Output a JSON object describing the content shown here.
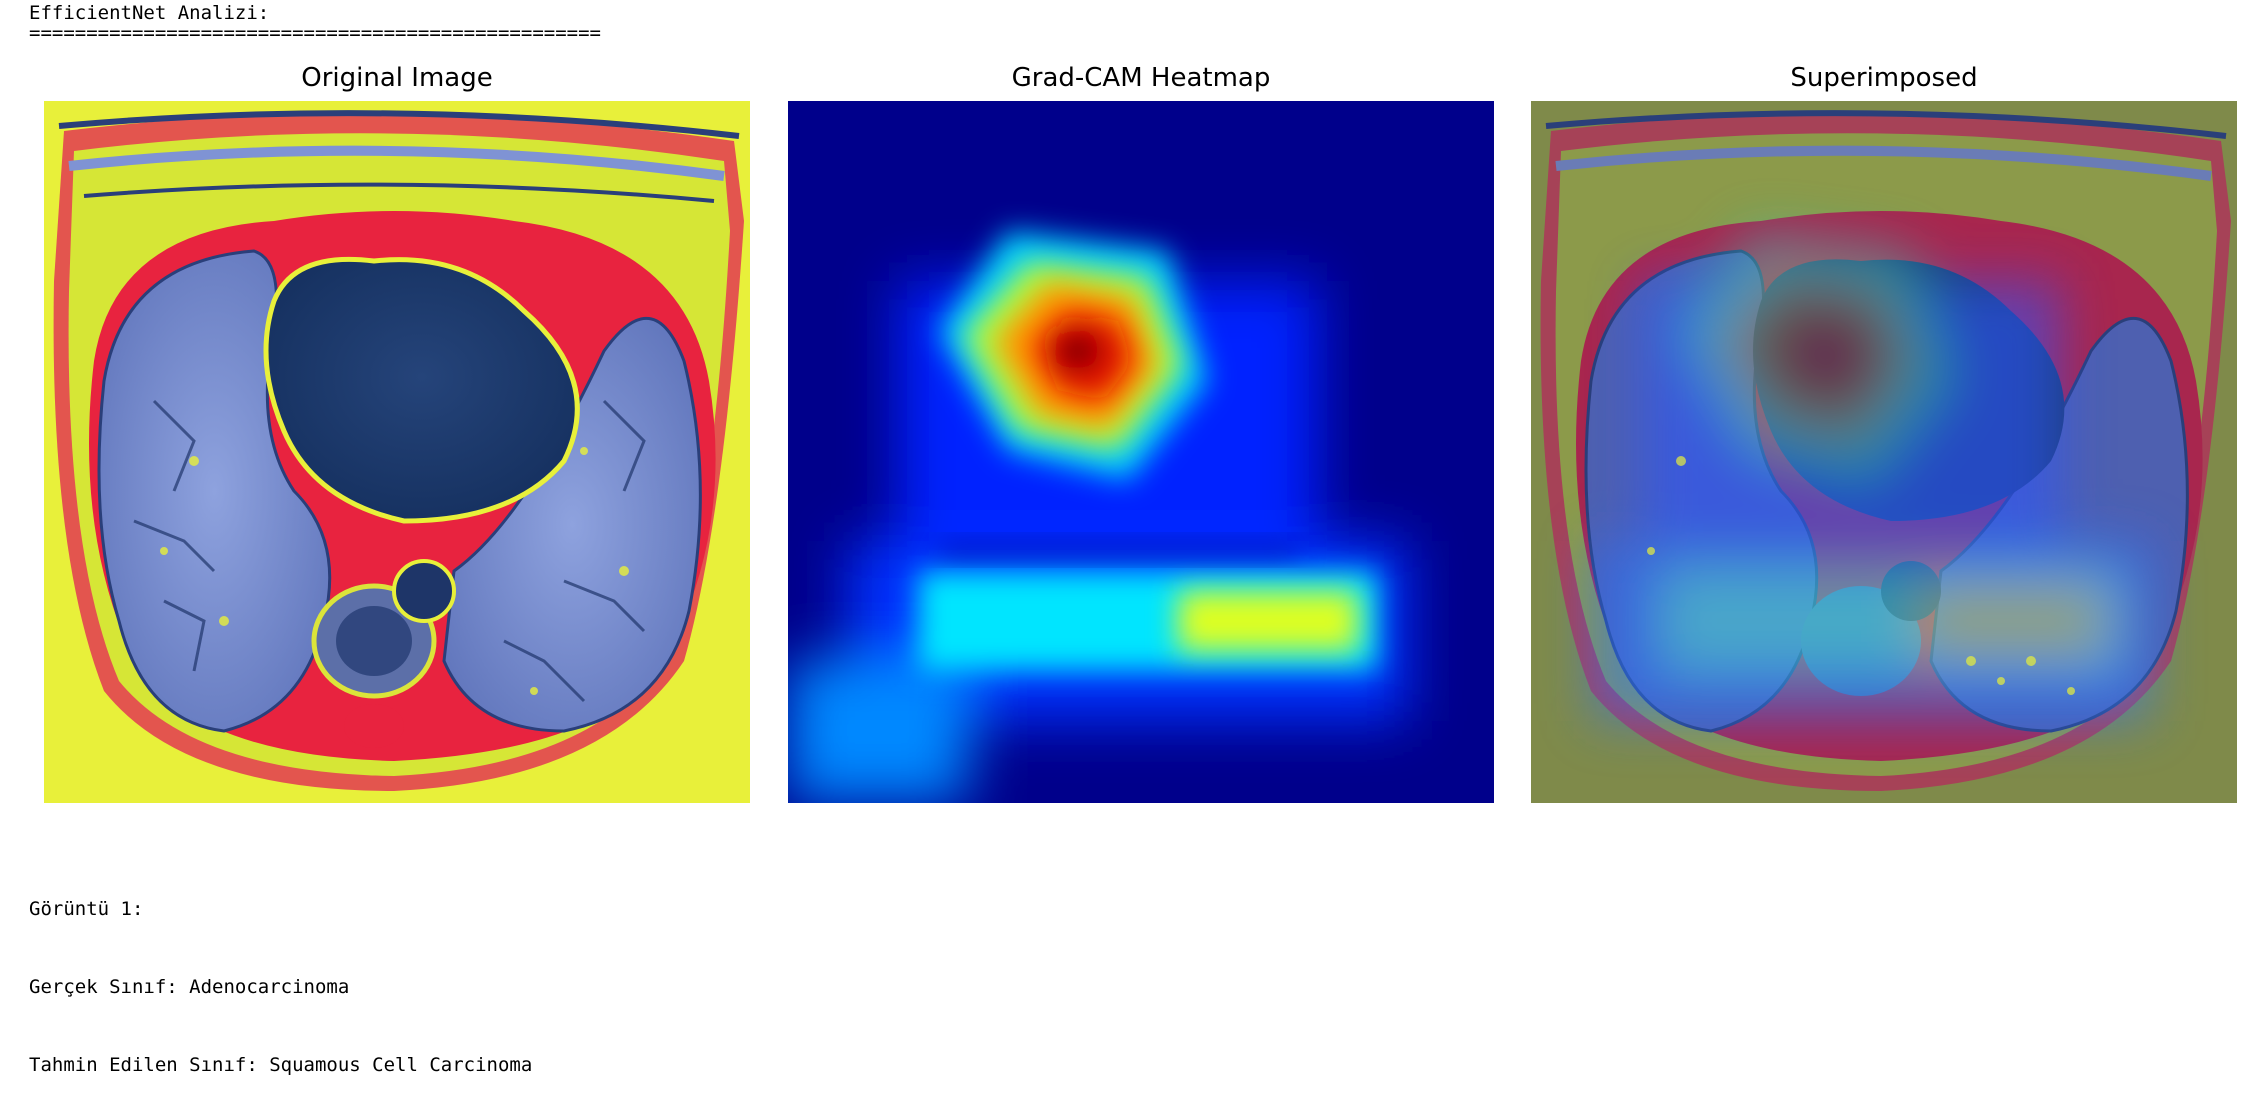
{
  "header": {
    "title": "EfficientNet Analizi:",
    "rule": "=================================================="
  },
  "panels": [
    {
      "title": "Original Image",
      "image_icon": "ct-scan-image"
    },
    {
      "title": "Grad-CAM Heatmap",
      "image_icon": "heatmap-image"
    },
    {
      "title": "Superimposed",
      "image_icon": "overlay-image"
    }
  ],
  "result": {
    "image_line": "Görüntü 1:",
    "true_class_line": "Gerçek Sınıf: Adenocarcinoma",
    "predicted_class_line": "Tahmin Edilen Sınıf: Squamous Cell Carcinoma"
  },
  "colors": {
    "ct_background": "#e8f03a",
    "ct_tissue": "#7f93d4",
    "ct_dark": "#1d3a6e",
    "ct_red": "#e8233f",
    "heat_low": "#00008b",
    "heat_mid": "#00e5ff",
    "heat_high": "#ff2a00"
  }
}
